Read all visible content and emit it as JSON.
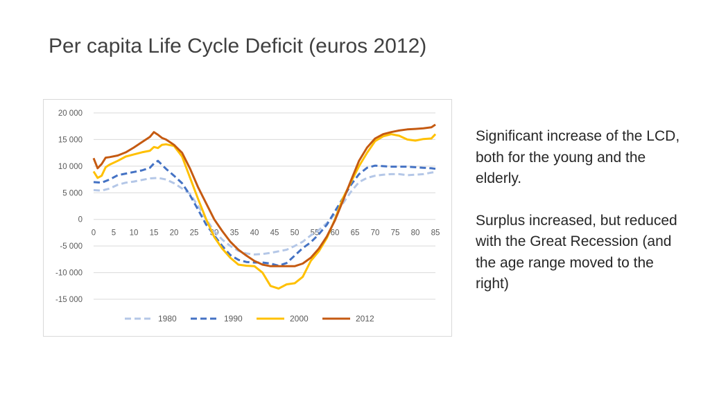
{
  "slide": {
    "title": "Per capita Life Cycle Deficit (euros 2012)",
    "notes": [
      "Significant increase of the LCD, both for the young and the elderly.",
      "Surplus increased, but reduced with the Great Recession (and the age range moved to the right)"
    ]
  },
  "chart_data": {
    "type": "line",
    "title": "",
    "xlabel": "",
    "ylabel": "",
    "xlim": [
      0,
      85
    ],
    "ylim": [
      -15000,
      20000
    ],
    "x_ticks": [
      0,
      5,
      10,
      15,
      20,
      25,
      30,
      35,
      40,
      45,
      50,
      55,
      60,
      65,
      70,
      75,
      80,
      85
    ],
    "y_ticks": [
      20000,
      15000,
      10000,
      5000,
      0,
      -5000,
      -10000,
      -15000
    ],
    "x_tick_labels": [
      "0",
      "5",
      "10",
      "15",
      "20",
      "25",
      "30",
      "35",
      "40",
      "45",
      "50",
      "55",
      "60",
      "65",
      "70",
      "75",
      "80",
      "85"
    ],
    "y_tick_labels": [
      "20 000",
      "15 000",
      "10 000",
      "5 000",
      "0",
      "-5 000",
      "-10 000",
      "-15 000"
    ],
    "grid": true,
    "legend_position": "bottom",
    "series": [
      {
        "name": "1980",
        "color": "#b4c7e7",
        "dash": "dashed",
        "x": [
          0,
          2,
          4,
          6,
          8,
          10,
          12,
          14,
          16,
          18,
          20,
          22,
          24,
          26,
          28,
          30,
          32,
          34,
          36,
          38,
          40,
          42,
          44,
          46,
          48,
          50,
          52,
          54,
          56,
          58,
          60,
          62,
          64,
          66,
          68,
          70,
          72,
          74,
          76,
          78,
          80,
          82,
          84,
          85
        ],
        "y": [
          5500,
          5400,
          5800,
          6500,
          6900,
          7100,
          7400,
          7700,
          7800,
          7500,
          6800,
          5800,
          4800,
          2500,
          0,
          -2200,
          -3800,
          -5000,
          -5900,
          -6400,
          -6600,
          -6500,
          -6300,
          -6000,
          -5700,
          -5000,
          -4200,
          -3000,
          -2000,
          -700,
          1000,
          3000,
          5200,
          7000,
          7800,
          8200,
          8400,
          8500,
          8500,
          8300,
          8400,
          8500,
          8800,
          8900
        ]
      },
      {
        "name": "1990",
        "color": "#4472c4",
        "dash": "dashed",
        "x": [
          0,
          2,
          4,
          6,
          8,
          10,
          12,
          14,
          15,
          16,
          18,
          20,
          22,
          24,
          26,
          28,
          30,
          32,
          34,
          36,
          38,
          40,
          42,
          44,
          46,
          48,
          50,
          52,
          54,
          56,
          58,
          60,
          62,
          64,
          66,
          68,
          70,
          72,
          74,
          76,
          78,
          80,
          82,
          84,
          85
        ],
        "y": [
          7000,
          6900,
          7500,
          8300,
          8600,
          8900,
          9200,
          9700,
          10500,
          11000,
          9500,
          8200,
          6800,
          4500,
          1800,
          -1000,
          -3000,
          -5000,
          -6700,
          -7600,
          -8000,
          -8100,
          -8100,
          -8300,
          -8700,
          -8200,
          -6800,
          -5400,
          -4300,
          -2800,
          -1000,
          1500,
          4000,
          6500,
          8500,
          9700,
          10100,
          10000,
          9900,
          9900,
          9900,
          9800,
          9700,
          9600,
          9500
        ]
      },
      {
        "name": "2000",
        "color": "#ffc000",
        "dash": "solid",
        "x": [
          0,
          1,
          2,
          3,
          4,
          6,
          8,
          10,
          12,
          14,
          15,
          16,
          17,
          18,
          20,
          22,
          24,
          26,
          28,
          30,
          32,
          34,
          36,
          38,
          40,
          42,
          44,
          46,
          48,
          50,
          52,
          54,
          56,
          58,
          60,
          62,
          64,
          66,
          68,
          70,
          72,
          74,
          76,
          78,
          80,
          82,
          84,
          85
        ],
        "y": [
          9000,
          7800,
          8200,
          9800,
          10300,
          11000,
          11800,
          12200,
          12600,
          12900,
          13600,
          13400,
          14000,
          14100,
          13800,
          11800,
          7800,
          3800,
          0,
          -3300,
          -5500,
          -7200,
          -8500,
          -8700,
          -8800,
          -10000,
          -12500,
          -13000,
          -12200,
          -12000,
          -10800,
          -7800,
          -6000,
          -3500,
          0,
          4000,
          7000,
          10000,
          12500,
          14700,
          15600,
          16000,
          15700,
          15000,
          14800,
          15100,
          15200,
          16000
        ]
      },
      {
        "name": "2012",
        "color": "#c55a11",
        "dash": "solid",
        "x": [
          0,
          1,
          2,
          3,
          4,
          6,
          8,
          10,
          12,
          14,
          15,
          16,
          17,
          18,
          19,
          20,
          22,
          24,
          26,
          28,
          30,
          32,
          34,
          36,
          38,
          40,
          42,
          44,
          46,
          48,
          50,
          52,
          54,
          56,
          58,
          60,
          62,
          64,
          66,
          68,
          70,
          72,
          74,
          76,
          78,
          80,
          82,
          84,
          85
        ],
        "y": [
          11500,
          9600,
          10400,
          11600,
          11700,
          12000,
          12600,
          13500,
          14500,
          15500,
          16400,
          15900,
          15300,
          15000,
          14500,
          14000,
          12500,
          9500,
          6000,
          3000,
          0,
          -2200,
          -4200,
          -5700,
          -6800,
          -7800,
          -8500,
          -8800,
          -8800,
          -8800,
          -8800,
          -8300,
          -7200,
          -5500,
          -3200,
          -200,
          3500,
          7300,
          11000,
          13500,
          15200,
          16000,
          16400,
          16700,
          16900,
          17000,
          17100,
          17300,
          17800
        ]
      }
    ]
  }
}
